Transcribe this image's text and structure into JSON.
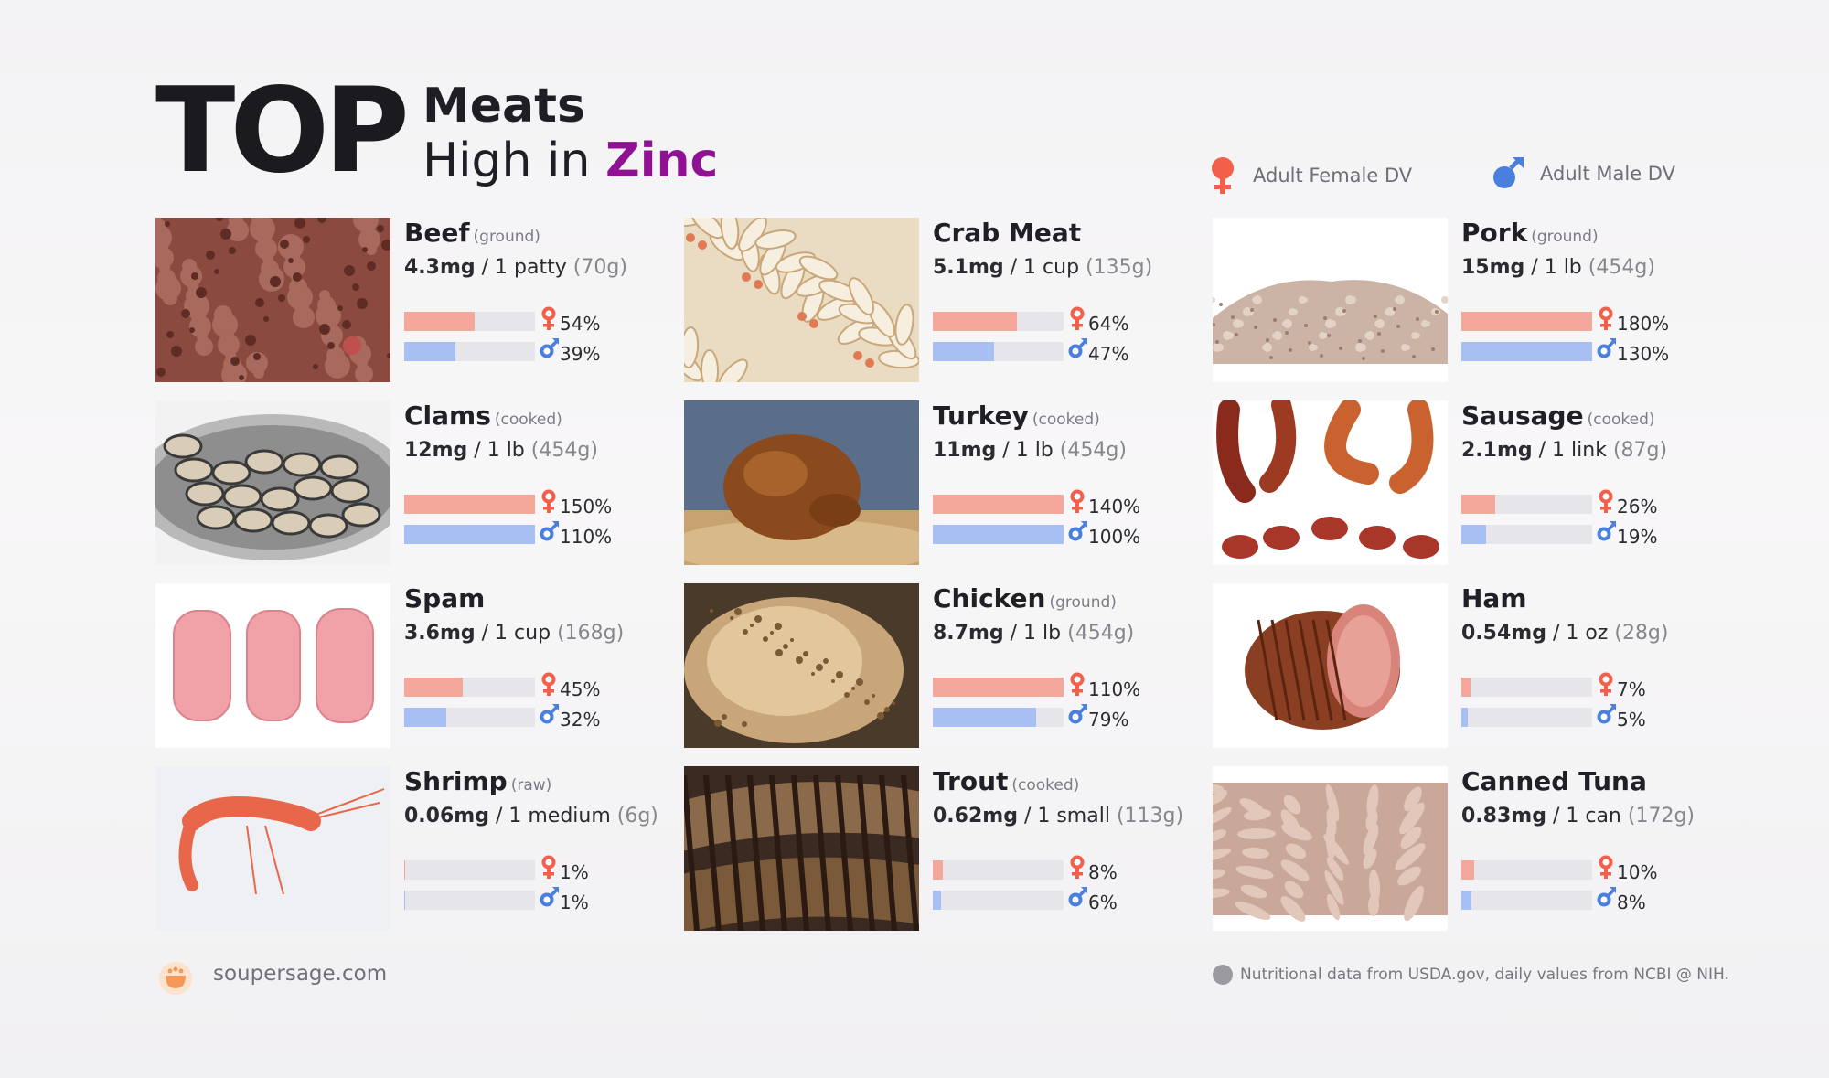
{
  "header": {
    "top_word": "TOP",
    "line1": "Meats",
    "line2_prefix": "High in",
    "line2_accent": "Zinc"
  },
  "legend": {
    "female_label": "Adult Female DV",
    "male_label": "Adult Male DV",
    "female_icon": "female-symbol-icon",
    "male_icon": "male-symbol-icon"
  },
  "colors": {
    "accent": "#8e1292",
    "female_bar": "#f4a89b",
    "male_bar": "#a8bff3",
    "female_icon": "#f2604c",
    "male_icon": "#4a7fdd",
    "track": "#e6e6ea"
  },
  "items": [
    {
      "name": "Beef",
      "note": "(ground)",
      "mg": "4.3mg",
      "serving": "/ 1 patty",
      "grams": "(70g)",
      "female_pct_label": "54%",
      "male_pct_label": "39%",
      "female_fraction": 0.54,
      "male_fraction": 0.39,
      "photo": "ground-beef-photo"
    },
    {
      "name": "Crab Meat",
      "note": "",
      "mg": "5.1mg",
      "serving": "/ 1 cup",
      "grams": "(135g)",
      "female_pct_label": "64%",
      "male_pct_label": "47%",
      "female_fraction": 0.64,
      "male_fraction": 0.47,
      "photo": "crab-meat-photo"
    },
    {
      "name": "Pork",
      "note": "(ground)",
      "mg": "15mg",
      "serving": "/ 1 lb",
      "grams": "(454g)",
      "female_pct_label": "180%",
      "male_pct_label": "130%",
      "female_fraction": 1.0,
      "male_fraction": 1.0,
      "photo": "ground-pork-photo"
    },
    {
      "name": "Clams",
      "note": "(cooked)",
      "mg": "12mg",
      "serving": "/ 1 lb",
      "grams": "(454g)",
      "female_pct_label": "150%",
      "male_pct_label": "110%",
      "female_fraction": 1.0,
      "male_fraction": 1.0,
      "photo": "clams-photo"
    },
    {
      "name": "Turkey",
      "note": "(cooked)",
      "mg": "11mg",
      "serving": "/ 1 lb",
      "grams": "(454g)",
      "female_pct_label": "140%",
      "male_pct_label": "100%",
      "female_fraction": 1.0,
      "male_fraction": 1.0,
      "photo": "roast-turkey-photo"
    },
    {
      "name": "Sausage",
      "note": "(cooked)",
      "mg": "2.1mg",
      "serving": "/ 1 link",
      "grams": "(87g)",
      "female_pct_label": "26%",
      "male_pct_label": "19%",
      "female_fraction": 0.26,
      "male_fraction": 0.19,
      "photo": "sausage-photo"
    },
    {
      "name": "Spam",
      "note": "",
      "mg": "3.6mg",
      "serving": "/ 1 cup",
      "grams": "(168g)",
      "female_pct_label": "45%",
      "male_pct_label": "32%",
      "female_fraction": 0.45,
      "male_fraction": 0.32,
      "photo": "spam-slices-photo"
    },
    {
      "name": "Chicken",
      "note": "(ground)",
      "mg": "8.7mg",
      "serving": "/ 1 lb",
      "grams": "(454g)",
      "female_pct_label": "110%",
      "male_pct_label": "79%",
      "female_fraction": 1.0,
      "male_fraction": 0.79,
      "photo": "roast-chicken-photo"
    },
    {
      "name": "Ham",
      "note": "",
      "mg": "0.54mg",
      "serving": "/ 1 oz",
      "grams": "(28g)",
      "female_pct_label": "7%",
      "male_pct_label": "5%",
      "female_fraction": 0.07,
      "male_fraction": 0.05,
      "photo": "ham-photo"
    },
    {
      "name": "Shrimp",
      "note": "(raw)",
      "mg": "0.06mg",
      "serving": "/ 1 medium",
      "grams": "(6g)",
      "female_pct_label": "1%",
      "male_pct_label": "1%",
      "female_fraction": 0.01,
      "male_fraction": 0.01,
      "photo": "shrimp-photo"
    },
    {
      "name": "Trout",
      "note": "(cooked)",
      "mg": "0.62mg",
      "serving": "/ 1 small",
      "grams": "(113g)",
      "female_pct_label": "8%",
      "male_pct_label": "6%",
      "female_fraction": 0.08,
      "male_fraction": 0.06,
      "photo": "grilled-trout-photo"
    },
    {
      "name": "Canned Tuna",
      "note": "",
      "mg": "0.83mg",
      "serving": "/ 1 can",
      "grams": "(172g)",
      "female_pct_label": "10%",
      "male_pct_label": "8%",
      "female_fraction": 0.1,
      "male_fraction": 0.08,
      "photo": "canned-tuna-photo"
    }
  ],
  "footer": {
    "site": "soupersage.com",
    "note": "Nutritional data from USDA.gov, daily values from NCBI @ NIH.",
    "logo_icon": "soupersage-logo-icon"
  }
}
